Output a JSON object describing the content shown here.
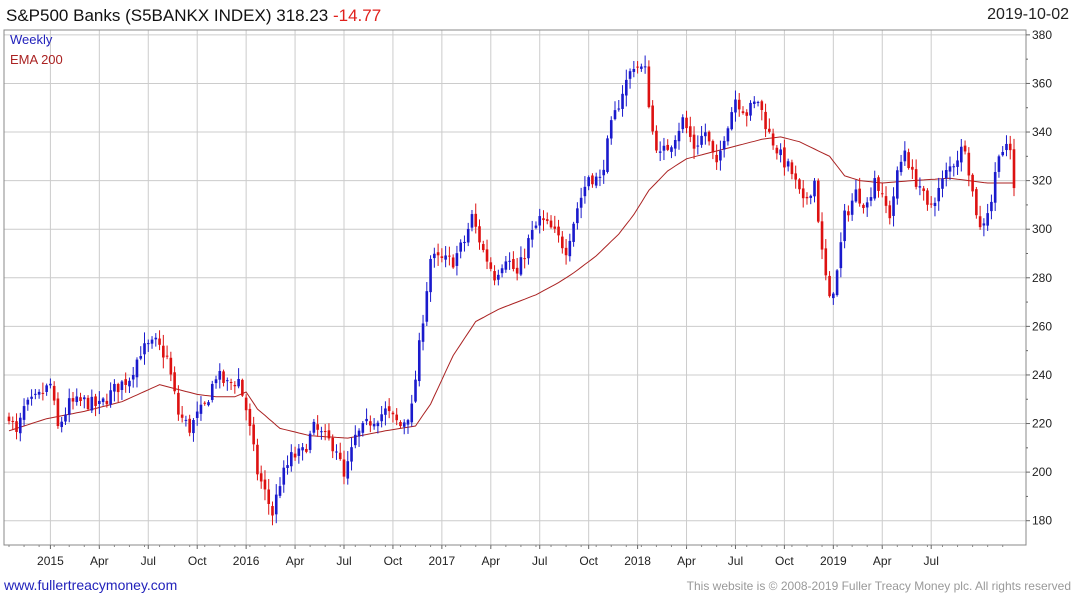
{
  "header": {
    "title": "S&P500 Banks  (S5BANKX INDEX)",
    "price": "318.23",
    "change": "-14.77",
    "date": "2019-10-02"
  },
  "footer": {
    "left": "www.fullertreacymoney.com",
    "right": "This website is © 2008-2019 Fuller Treacy Money plc. All rights reserved"
  },
  "chart_data": {
    "type": "candlestick",
    "frequency_label": "Weekly",
    "indicator_label": "EMA 200",
    "colors": {
      "up": "#1a1acc",
      "down": "#dd1111",
      "ema": "#aa2222",
      "grid": "#cccccc"
    },
    "grid": true,
    "y_axis_position": "right",
    "ylim": [
      170,
      382
    ],
    "y_ticks": [
      180,
      200,
      220,
      240,
      260,
      280,
      300,
      320,
      340,
      360,
      380
    ],
    "x_tick_labels": [
      "2015",
      "Apr",
      "Jul",
      "Oct",
      "2016",
      "Apr",
      "Jul",
      "Oct",
      "2017",
      "Apr",
      "Jul",
      "Oct",
      "2018",
      "Apr",
      "Jul",
      "Oct",
      "2019",
      "Apr",
      "Jul"
    ],
    "x_tick_week_index": [
      11,
      24,
      37,
      50,
      63,
      76,
      89,
      102,
      115,
      128,
      141,
      154,
      167,
      180,
      193,
      206,
      219,
      232,
      245
    ],
    "price_anchors": [
      [
        0,
        224
      ],
      [
        2,
        215
      ],
      [
        4,
        226
      ],
      [
        8,
        231
      ],
      [
        11,
        236
      ],
      [
        13,
        218
      ],
      [
        16,
        228
      ],
      [
        20,
        229
      ],
      [
        24,
        227
      ],
      [
        28,
        234
      ],
      [
        32,
        239
      ],
      [
        35,
        250
      ],
      [
        39,
        253
      ],
      [
        42,
        247
      ],
      [
        45,
        224
      ],
      [
        48,
        218
      ],
      [
        50,
        223
      ],
      [
        52,
        227
      ],
      [
        55,
        240
      ],
      [
        58,
        236
      ],
      [
        61,
        238
      ],
      [
        63,
        226
      ],
      [
        66,
        200
      ],
      [
        70,
        183
      ],
      [
        72,
        196
      ],
      [
        75,
        206
      ],
      [
        78,
        208
      ],
      [
        81,
        218
      ],
      [
        84,
        214
      ],
      [
        87,
        210
      ],
      [
        89,
        197
      ],
      [
        92,
        214
      ],
      [
        96,
        221
      ],
      [
        100,
        225
      ],
      [
        104,
        219
      ],
      [
        107,
        226
      ],
      [
        110,
        264
      ],
      [
        112,
        288
      ],
      [
        115,
        287
      ],
      [
        118,
        287
      ],
      [
        121,
        295
      ],
      [
        123,
        305
      ],
      [
        126,
        291
      ],
      [
        129,
        281
      ],
      [
        132,
        289
      ],
      [
        135,
        281
      ],
      [
        138,
        295
      ],
      [
        141,
        304
      ],
      [
        144,
        300
      ],
      [
        148,
        292
      ],
      [
        151,
        309
      ],
      [
        154,
        322
      ],
      [
        157,
        320
      ],
      [
        160,
        342
      ],
      [
        163,
        357
      ],
      [
        166,
        368
      ],
      [
        169,
        365
      ],
      [
        171,
        340
      ],
      [
        173,
        330
      ],
      [
        176,
        336
      ],
      [
        179,
        345
      ],
      [
        182,
        334
      ],
      [
        185,
        340
      ],
      [
        188,
        325
      ],
      [
        190,
        339
      ],
      [
        193,
        354
      ],
      [
        196,
        348
      ],
      [
        199,
        353
      ],
      [
        202,
        339
      ],
      [
        205,
        330
      ],
      [
        208,
        323
      ],
      [
        211,
        310
      ],
      [
        214,
        320
      ],
      [
        216,
        290
      ],
      [
        218,
        270
      ],
      [
        220,
        282
      ],
      [
        222,
        305
      ],
      [
        225,
        315
      ],
      [
        228,
        310
      ],
      [
        230,
        322
      ],
      [
        232,
        312
      ],
      [
        234,
        306
      ],
      [
        236,
        322
      ],
      [
        238,
        333
      ],
      [
        240,
        322
      ],
      [
        242,
        318
      ],
      [
        244,
        308
      ],
      [
        247,
        316
      ],
      [
        249,
        323
      ],
      [
        252,
        330
      ],
      [
        254,
        335
      ],
      [
        256,
        315
      ],
      [
        258,
        300
      ],
      [
        261,
        312
      ],
      [
        263,
        333
      ],
      [
        266,
        332
      ],
      [
        267,
        318
      ]
    ],
    "ema_anchors": [
      [
        0,
        217
      ],
      [
        10,
        222
      ],
      [
        20,
        225
      ],
      [
        30,
        229
      ],
      [
        40,
        236
      ],
      [
        45,
        234
      ],
      [
        50,
        232
      ],
      [
        55,
        231
      ],
      [
        60,
        231
      ],
      [
        63,
        233
      ],
      [
        66,
        226
      ],
      [
        72,
        218
      ],
      [
        80,
        215
      ],
      [
        90,
        214
      ],
      [
        100,
        217
      ],
      [
        108,
        219
      ],
      [
        112,
        228
      ],
      [
        118,
        248
      ],
      [
        124,
        262
      ],
      [
        130,
        267
      ],
      [
        140,
        273
      ],
      [
        146,
        278
      ],
      [
        150,
        282
      ],
      [
        156,
        289
      ],
      [
        162,
        298
      ],
      [
        166,
        306
      ],
      [
        170,
        316
      ],
      [
        175,
        324
      ],
      [
        180,
        329
      ],
      [
        190,
        333
      ],
      [
        200,
        337
      ],
      [
        205,
        338
      ],
      [
        210,
        336
      ],
      [
        218,
        330
      ],
      [
        222,
        322
      ],
      [
        226,
        320
      ],
      [
        232,
        319
      ],
      [
        240,
        320
      ],
      [
        250,
        321
      ],
      [
        255,
        320
      ],
      [
        260,
        319
      ],
      [
        267,
        319
      ]
    ],
    "num_weeks": 268
  }
}
